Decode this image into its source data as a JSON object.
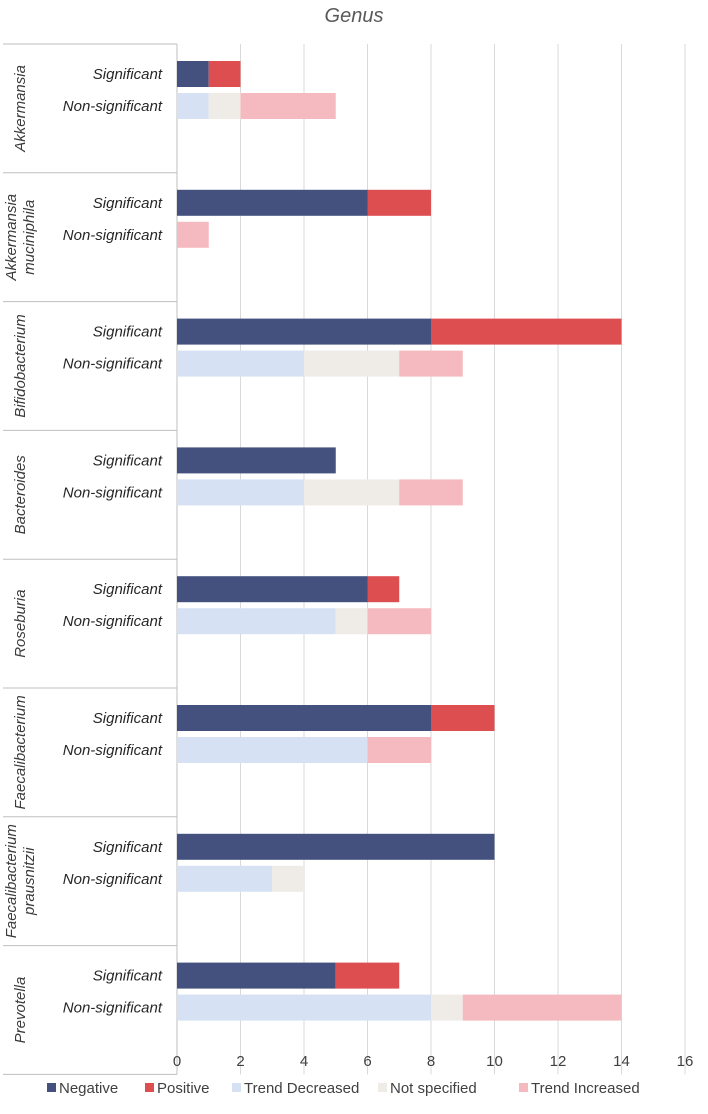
{
  "chart_data": {
    "type": "bar",
    "orientation": "horizontal-stacked",
    "title": "Genus",
    "xlim": [
      0,
      16
    ],
    "xticks": [
      0,
      2,
      4,
      6,
      8,
      10,
      12,
      14,
      16
    ],
    "grid": true,
    "legend_position": "bottom",
    "series": [
      {
        "key": "negative",
        "name": "Negative",
        "color": "#44507e"
      },
      {
        "key": "positive",
        "name": "Positive",
        "color": "#dc4e50"
      },
      {
        "key": "trend_decreased",
        "name": "Trend Decreased",
        "color": "#d6e2f3"
      },
      {
        "key": "not_specified",
        "name": "Not specified",
        "color": "#efebe6"
      },
      {
        "key": "trend_increased",
        "name": "Trend Increased",
        "color": "#f5babf"
      }
    ],
    "groups": [
      {
        "genus_lines": [
          "Akkermansia"
        ],
        "rows": [
          {
            "label": "Significant",
            "values": {
              "negative": 1,
              "positive": 1,
              "trend_decreased": 0,
              "not_specified": 0,
              "trend_increased": 0
            }
          },
          {
            "label": "Non-significant",
            "values": {
              "negative": 0,
              "positive": 0,
              "trend_decreased": 1,
              "not_specified": 1,
              "trend_increased": 3
            }
          }
        ]
      },
      {
        "genus_lines": [
          "Akkermansia",
          "muciniphila"
        ],
        "rows": [
          {
            "label": "Significant",
            "values": {
              "negative": 6,
              "positive": 2,
              "trend_decreased": 0,
              "not_specified": 0,
              "trend_increased": 0
            }
          },
          {
            "label": "Non-significant",
            "values": {
              "negative": 0,
              "positive": 0,
              "trend_decreased": 0,
              "not_specified": 0,
              "trend_increased": 1
            }
          }
        ]
      },
      {
        "genus_lines": [
          "Bifidobacterium"
        ],
        "rows": [
          {
            "label": "Significant",
            "values": {
              "negative": 8,
              "positive": 6,
              "trend_decreased": 0,
              "not_specified": 0,
              "trend_increased": 0
            }
          },
          {
            "label": "Non-significant",
            "values": {
              "negative": 0,
              "positive": 0,
              "trend_decreased": 4,
              "not_specified": 3,
              "trend_increased": 2
            }
          }
        ]
      },
      {
        "genus_lines": [
          "Bacteroides"
        ],
        "rows": [
          {
            "label": "Significant",
            "values": {
              "negative": 5,
              "positive": 0,
              "trend_decreased": 0,
              "not_specified": 0,
              "trend_increased": 0
            }
          },
          {
            "label": "Non-significant",
            "values": {
              "negative": 0,
              "positive": 0,
              "trend_decreased": 4,
              "not_specified": 3,
              "trend_increased": 2
            }
          }
        ]
      },
      {
        "genus_lines": [
          "Roseburia"
        ],
        "rows": [
          {
            "label": "Significant",
            "values": {
              "negative": 6,
              "positive": 1,
              "trend_decreased": 0,
              "not_specified": 0,
              "trend_increased": 0
            }
          },
          {
            "label": "Non-significant",
            "values": {
              "negative": 0,
              "positive": 0,
              "trend_decreased": 5,
              "not_specified": 1,
              "trend_increased": 2
            }
          }
        ]
      },
      {
        "genus_lines": [
          "Faecalibacterium"
        ],
        "rows": [
          {
            "label": "Significant",
            "values": {
              "negative": 8,
              "positive": 2,
              "trend_decreased": 0,
              "not_specified": 0,
              "trend_increased": 0
            }
          },
          {
            "label": "Non-significant",
            "values": {
              "negative": 0,
              "positive": 0,
              "trend_decreased": 6,
              "not_specified": 0,
              "trend_increased": 2
            }
          }
        ]
      },
      {
        "genus_lines": [
          "Faecalibacterium",
          "prausnitzii"
        ],
        "rows": [
          {
            "label": "Significant",
            "values": {
              "negative": 10,
              "positive": 0,
              "trend_decreased": 0,
              "not_specified": 0,
              "trend_increased": 0
            }
          },
          {
            "label": "Non-significant",
            "values": {
              "negative": 0,
              "positive": 0,
              "trend_decreased": 3,
              "not_specified": 1,
              "trend_increased": 0
            }
          }
        ]
      },
      {
        "genus_lines": [
          "Prevotella"
        ],
        "rows": [
          {
            "label": "Significant",
            "values": {
              "negative": 5,
              "positive": 2,
              "trend_decreased": 0,
              "not_specified": 0,
              "trend_increased": 0
            }
          },
          {
            "label": "Non-significant",
            "values": {
              "negative": 0,
              "positive": 0,
              "trend_decreased": 8,
              "not_specified": 1,
              "trend_increased": 5
            }
          }
        ]
      }
    ]
  }
}
